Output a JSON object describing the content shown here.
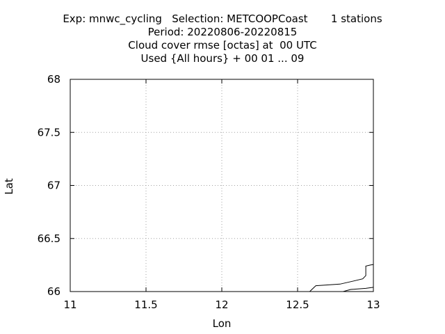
{
  "chart_data": {
    "type": "line",
    "title_lines": [
      "Exp: mnwc_cycling   Selection: METCOOPCoast       1 stations",
      "Period: 20220806-20220815",
      "Cloud cover rmse [octas] at  00 UTC",
      "Used {All hours} + 00 01 ... 09"
    ],
    "xlabel": "Lon",
    "ylabel": "Lat",
    "xlim": [
      11,
      13
    ],
    "ylim": [
      66,
      68
    ],
    "xticks": [
      11,
      11.5,
      12,
      12.5,
      13
    ],
    "xtick_labels": [
      "11",
      "11.5",
      "12",
      "12.5",
      "13"
    ],
    "yticks": [
      66,
      66.5,
      67,
      67.5,
      68
    ],
    "ytick_labels": [
      "66",
      "66.5",
      "67",
      "67.5",
      "68"
    ],
    "grid": true,
    "series": [
      {
        "x": [
          12.58,
          12.62,
          12.68,
          12.78,
          12.87,
          12.93,
          12.95,
          12.95,
          12.98,
          13.0
        ],
        "y": [
          66.0,
          66.055,
          66.06,
          66.07,
          66.1,
          66.12,
          66.15,
          66.24,
          66.25,
          66.255
        ]
      },
      {
        "x": [
          12.8,
          12.85,
          12.95,
          13.0
        ],
        "y": [
          66.0,
          66.02,
          66.03,
          66.04
        ]
      }
    ]
  }
}
